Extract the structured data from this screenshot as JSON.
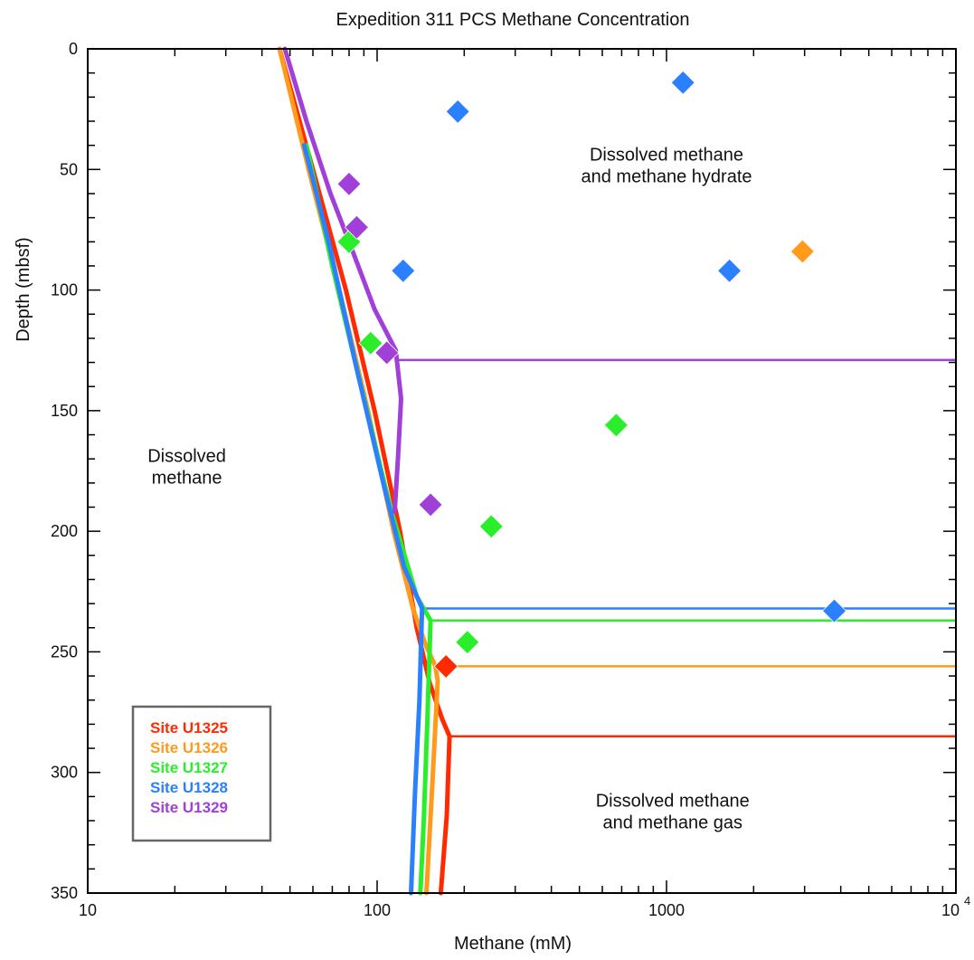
{
  "chart_data": {
    "type": "scatter",
    "title": "Expedition 311 PCS Methane Concentration",
    "xlabel": "Methane (mM)",
    "ylabel": "Depth (mbsf)",
    "x_scale": "log",
    "xlim": [
      10,
      10000
    ],
    "ylim": [
      350,
      0
    ],
    "y_inverted": true,
    "x_ticks": [
      {
        "value": 10,
        "label": "10"
      },
      {
        "value": 100,
        "label": "100"
      },
      {
        "value": 1000,
        "label": "1000"
      },
      {
        "value": 10000,
        "label": "10",
        "exponent": "4"
      }
    ],
    "y_ticks": [
      {
        "value": 0,
        "label": "0"
      },
      {
        "value": 50,
        "label": "50"
      },
      {
        "value": 100,
        "label": "100"
      },
      {
        "value": 150,
        "label": "150"
      },
      {
        "value": 200,
        "label": "200"
      },
      {
        "value": 250,
        "label": "250"
      },
      {
        "value": 300,
        "label": "300"
      },
      {
        "value": 350,
        "label": "350"
      }
    ],
    "grid": false,
    "legend_position": "bottom-left",
    "series": [
      {
        "name": "Site U1325",
        "color": "#ff2a00",
        "solubility_curve": [
          [
            46,
            0
          ],
          [
            60,
            50
          ],
          [
            78,
            100
          ],
          [
            98,
            150
          ],
          [
            120,
            200
          ],
          [
            137,
            240
          ],
          [
            152,
            263
          ],
          [
            168,
            278
          ],
          [
            178,
            285
          ],
          [
            174,
            318
          ],
          [
            166,
            350
          ]
        ],
        "saturation_depth": 285,
        "points": [
          [
            173,
            256
          ]
        ]
      },
      {
        "name": "Site U1326",
        "color": "#ff9a1a",
        "solubility_curve": [
          [
            46,
            0
          ],
          [
            58,
            50
          ],
          [
            74,
            100
          ],
          [
            93,
            150
          ],
          [
            114,
            200
          ],
          [
            133,
            232
          ],
          [
            146,
            246
          ],
          [
            159,
            256
          ],
          [
            162,
            262
          ],
          [
            155,
            306
          ],
          [
            148,
            350
          ]
        ],
        "saturation_depth": 256,
        "points": [
          [
            2950,
            84
          ]
        ]
      },
      {
        "name": "Site U1327",
        "color": "#2aee2a",
        "solubility_curve": [
          [
            57,
            40
          ],
          [
            70,
            90
          ],
          [
            88,
            140
          ],
          [
            111,
            190
          ],
          [
            137,
            227
          ],
          [
            153,
            237
          ],
          [
            149,
            280
          ],
          [
            145,
            320
          ],
          [
            141,
            350
          ]
        ],
        "saturation_depth": 237,
        "points": [
          [
            80,
            80
          ],
          [
            95,
            122
          ],
          [
            670,
            156
          ],
          [
            248,
            198
          ],
          [
            205,
            246
          ]
        ]
      },
      {
        "name": "Site U1328",
        "color": "#2a80ff",
        "solubility_curve": [
          [
            56,
            40
          ],
          [
            68,
            80
          ],
          [
            84,
            130
          ],
          [
            105,
            180
          ],
          [
            124,
            215
          ],
          [
            143,
            232
          ],
          [
            140,
            270
          ],
          [
            135,
            310
          ],
          [
            131,
            350
          ]
        ],
        "saturation_depth": 232,
        "points": [
          [
            1140,
            14
          ],
          [
            190,
            26
          ],
          [
            123,
            92
          ],
          [
            1650,
            92
          ],
          [
            3800,
            233
          ]
        ]
      },
      {
        "name": "Site U1329",
        "color": "#a040d8",
        "solubility_curve": [
          [
            48,
            0
          ],
          [
            57,
            30
          ],
          [
            69,
            60
          ],
          [
            83,
            85
          ],
          [
            98,
            108
          ],
          [
            116,
            125
          ],
          [
            121,
            145
          ],
          [
            118,
            170
          ],
          [
            115,
            192
          ]
        ],
        "saturation_depth": 129,
        "points": [
          [
            80,
            56
          ],
          [
            85,
            74
          ],
          [
            108,
            126
          ],
          [
            153,
            189
          ]
        ]
      }
    ],
    "annotations": [
      {
        "lines": [
          "Dissolved methane",
          "and methane hydrate"
        ],
        "x": 1000,
        "y": 50
      },
      {
        "lines": [
          "Dissolved",
          "methane"
        ],
        "x": 22,
        "y": 175
      },
      {
        "lines": [
          "Dissolved methane",
          "and methane gas"
        ],
        "x": 1050,
        "y": 318
      }
    ]
  }
}
